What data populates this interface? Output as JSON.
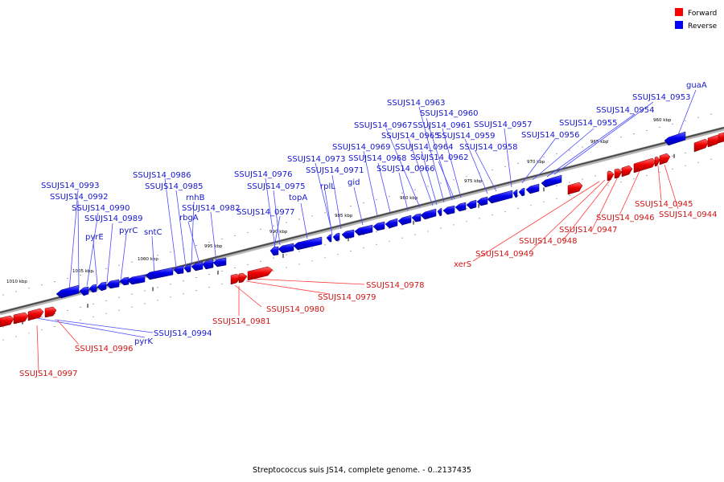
{
  "legend": {
    "items": [
      {
        "label": "Forward",
        "color": "#ff0000"
      },
      {
        "label": "Reverse",
        "color": "#0000ff"
      }
    ]
  },
  "caption": "Streptococcus suis JS14, complete genome. - 0..2137435",
  "ticks": [
    "1010 kbp",
    "1005 kbp",
    "1000 kbp",
    "995 kbp",
    "990 kbp",
    "985 kbp",
    "980 kbp",
    "975 kbp",
    "970 kbp",
    "965 kbp",
    "960 kbp"
  ],
  "reverse_labels": [
    "SSUJS14_0993",
    "SSUJS14_0992",
    "SSUJS14_0990",
    "pyrE",
    "SSUJS14_0989",
    "pyrC",
    "sntC",
    "SSUJS14_0986",
    "SSUJS14_0985",
    "rnhB",
    "rbgA",
    "SSUJS14_0982",
    "SSUJS14_0976",
    "SSUJS14_0975",
    "SSUJS14_0977",
    "topA",
    "SSUJS14_0973",
    "SSUJS14_0971",
    "rplL",
    "gid",
    "SSUJS14_0969",
    "SSUJS14_0968",
    "SSUJS14_0967",
    "SSUJS14_0966",
    "SSUJS14_0965",
    "SSUJS14_0964",
    "SSUJS14_0963",
    "SSUJS14_0960",
    "SSUJS14_0961",
    "SSUJS14_0962",
    "SSUJS14_0959",
    "SSUJS14_0958",
    "SSUJS14_0957",
    "SSUJS14_0956",
    "SSUJS14_0955",
    "SSUJS14_0954",
    "SSUJS14_0953",
    "guaA",
    "SSUJS14_0994",
    "pyrK"
  ],
  "forward_labels": [
    "SSUJS14_0978",
    "SSUJS14_0979",
    "SSUJS14_0980",
    "SSUJS14_0981",
    "xerS",
    "SSUJS14_0949",
    "SSUJS14_0948",
    "SSUJS14_0947",
    "SSUJS14_0946",
    "SSUJS14_0945",
    "SSUJS14_0944",
    "SSUJS14_0996",
    "SSUJS14_0997"
  ]
}
